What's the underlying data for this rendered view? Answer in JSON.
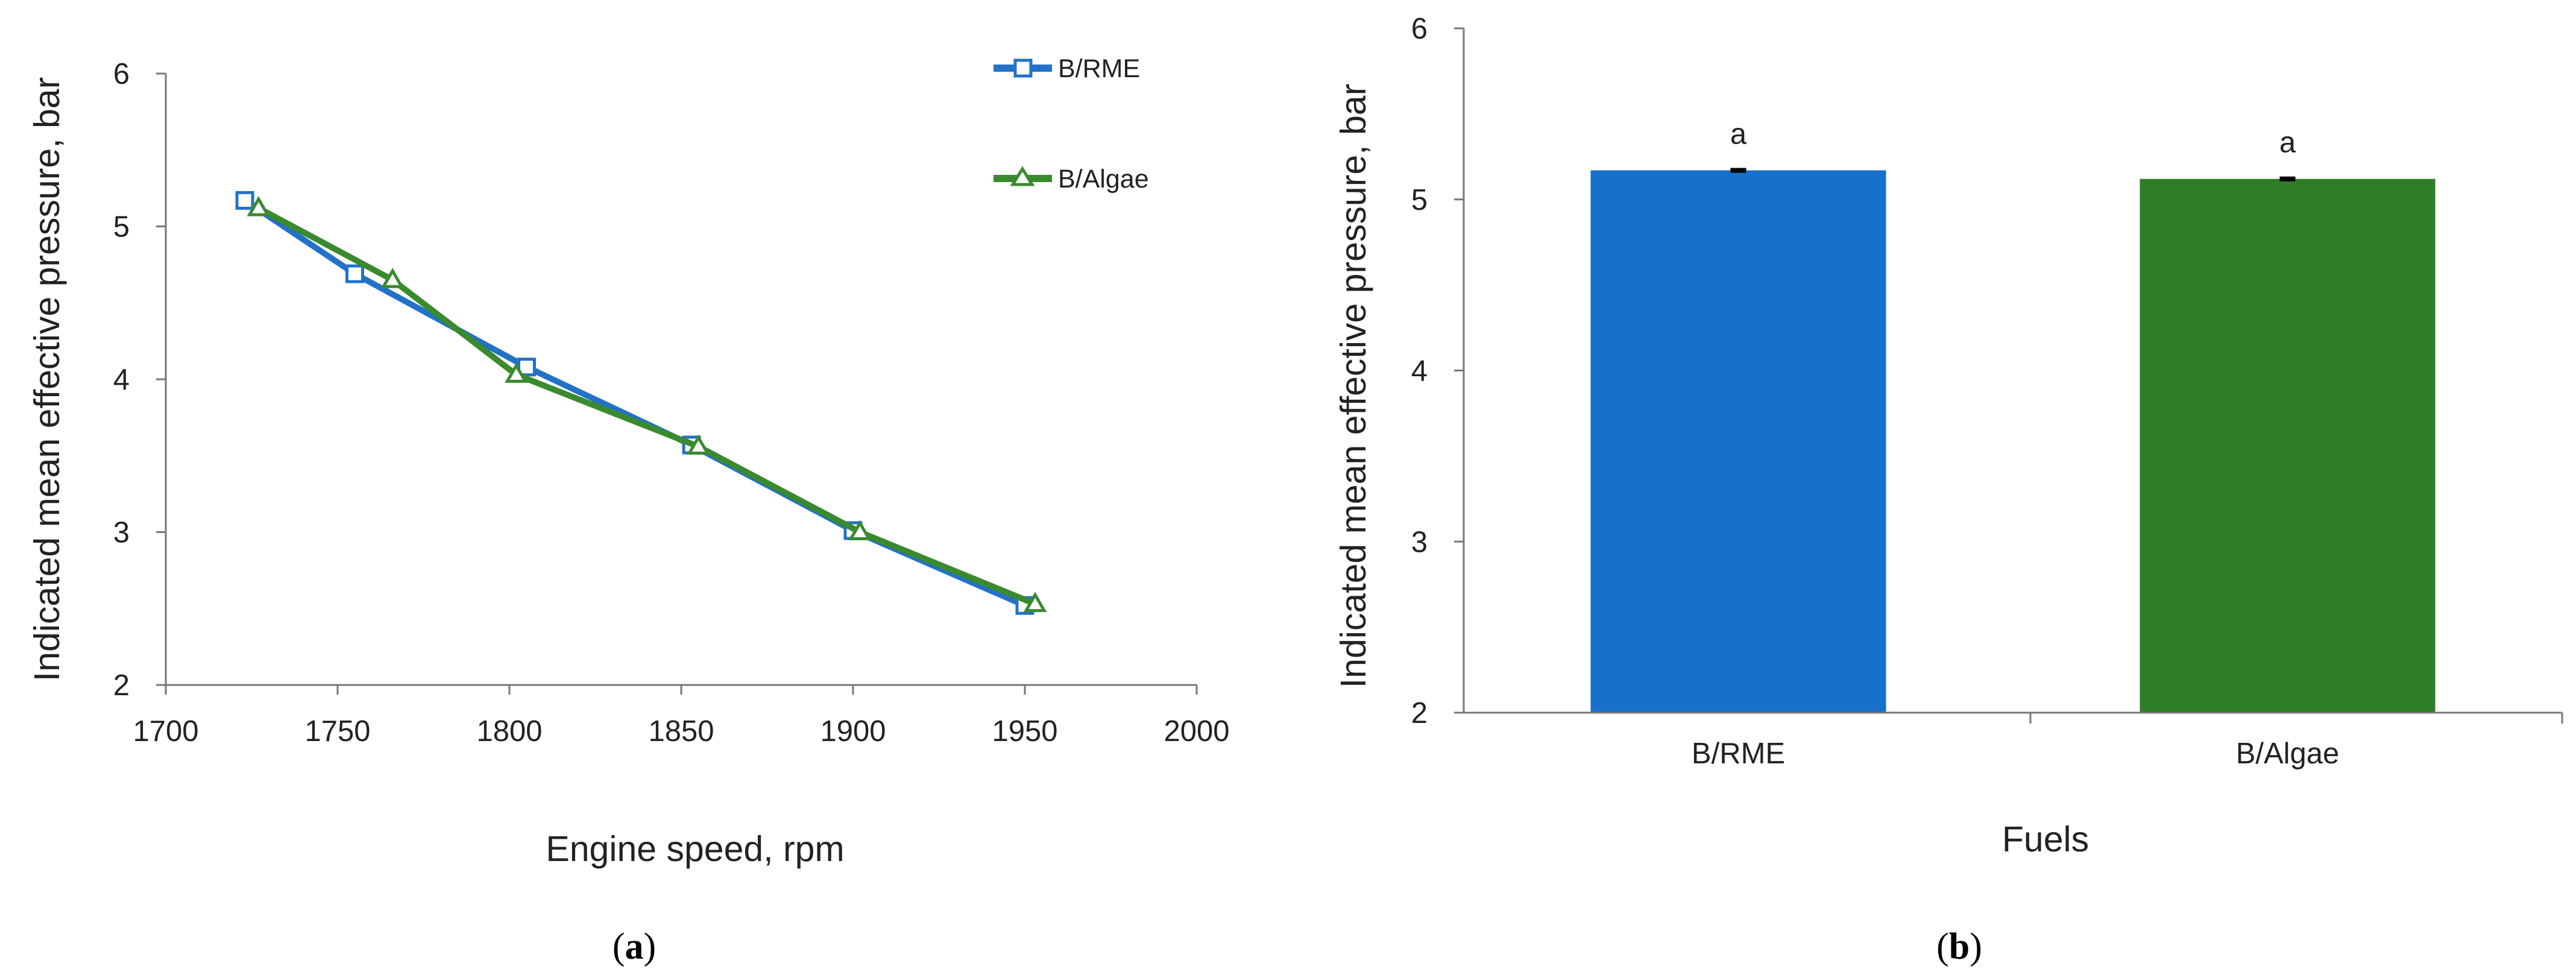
{
  "chart_data": [
    {
      "id": "a",
      "type": "line",
      "caption_open": "(",
      "caption_letter": "a",
      "caption_close": ")",
      "xlabel": "Engine speed, rpm",
      "ylabel": "Indicated mean effective pressure, bar",
      "xlim": [
        1700,
        2000
      ],
      "ylim": [
        2,
        6
      ],
      "xticks": [
        1700,
        1750,
        1800,
        1850,
        1900,
        1950,
        2000
      ],
      "yticks": [
        2,
        3,
        4,
        5,
        6
      ],
      "series": [
        {
          "name": "B/RME",
          "marker": "square",
          "color": "#2272c8",
          "x": [
            1723,
            1755,
            1805,
            1853,
            1900,
            1950
          ],
          "y": [
            5.17,
            4.69,
            4.08,
            3.57,
            3.01,
            2.52
          ]
        },
        {
          "name": "B/Algae",
          "marker": "triangle",
          "color": "#3a8a2e",
          "x": [
            1727,
            1766,
            1802,
            1855,
            1902,
            1953
          ],
          "y": [
            5.12,
            4.65,
            4.03,
            3.56,
            3.0,
            2.53
          ]
        }
      ]
    },
    {
      "id": "b",
      "type": "bar",
      "caption_open": "(",
      "caption_letter": "b",
      "caption_close": ")",
      "xlabel": "Fuels",
      "ylabel": "Indicated mean effective pressure, bar",
      "ylim": [
        2,
        6
      ],
      "yticks": [
        2,
        3,
        4,
        5,
        6
      ],
      "categories": [
        "B/RME",
        "B/Algae"
      ],
      "values": [
        5.17,
        5.12
      ],
      "errors": [
        0.005,
        0.005
      ],
      "significance": [
        "a",
        "a"
      ],
      "colors": [
        "#1770ca",
        "#2e7d27"
      ]
    }
  ]
}
